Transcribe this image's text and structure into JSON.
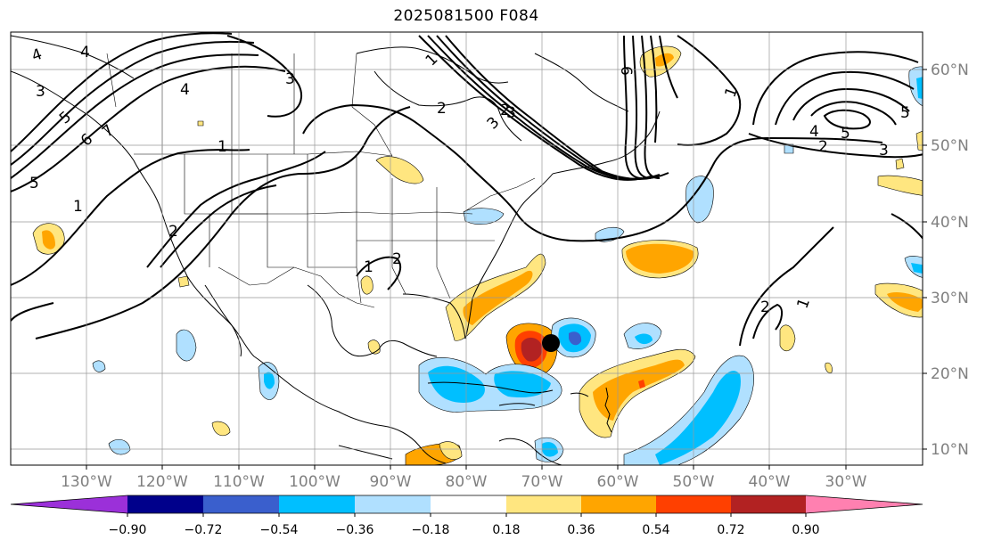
{
  "title": "2025081500 F084",
  "axes": {
    "lon_labels": [
      "130°W",
      "120°W",
      "110°W",
      "100°W",
      "90°W",
      "80°W",
      "70°W",
      "60°W",
      "50°W",
      "40°W",
      "30°W"
    ],
    "lat_labels": [
      "60°N",
      "50°N",
      "40°N",
      "30°N",
      "20°N",
      "10°N"
    ],
    "lon_values": [
      -130,
      -120,
      -110,
      -100,
      -90,
      -80,
      -70,
      -60,
      -50,
      -40,
      -30
    ],
    "lat_values": [
      60,
      50,
      40,
      30,
      20,
      10
    ],
    "tick_label_color": "#808080",
    "grid_color": "#999999"
  },
  "colorbar": {
    "tick_labels": [
      "−0.90",
      "−0.72",
      "−0.54",
      "−0.36",
      "−0.18",
      "0.18",
      "0.36",
      "0.54",
      "0.72",
      "0.90"
    ],
    "colors": [
      "#9b30d9",
      "#00008b",
      "#3a5fcd",
      "#00bfff",
      "#b0e0ff",
      "#ffffff",
      "#ffe680",
      "#ffa500",
      "#ff4000",
      "#b22222",
      "#ff80b0"
    ]
  },
  "storm_marker": {
    "lon": -68.5,
    "lat": 24,
    "color": "#000000"
  },
  "contour_labels": [
    "4",
    "3",
    "4",
    "5",
    "6",
    "7",
    "1",
    "1",
    "2",
    "3",
    "4",
    "5",
    "3",
    "2",
    "1",
    "2",
    "3",
    "6",
    "1",
    "4",
    "5",
    "2",
    "3",
    "5",
    "1",
    "2",
    "1",
    "2"
  ]
}
